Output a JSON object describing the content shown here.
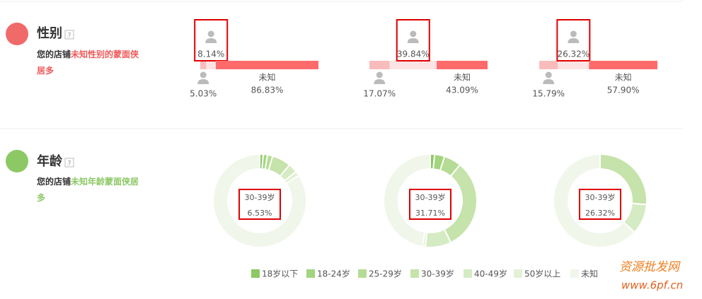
{
  "gender": {
    "title": "性别",
    "help": "?",
    "desc_prefix": "您的店铺",
    "desc_highlight": "未知性别的蒙面侠居多"
  },
  "age": {
    "title": "年龄",
    "help": "?",
    "desc_prefix": "您的店铺",
    "desc_highlight": "未知年龄蒙面侠居多"
  },
  "watermark": {
    "line1": "资源批发网",
    "line2": "www.6pf.cn"
  },
  "chart_data": [
    {
      "type": "stacked-bar",
      "categories": [
        null,
        null,
        "未知"
      ],
      "values": [
        5.03,
        8.14,
        86.83
      ],
      "value_labels": [
        "5.03%",
        "8.14%",
        "86.83%"
      ],
      "colors": [
        "#f9bcbc",
        "#fde3e3",
        "#ff6b6b"
      ],
      "xlim": [
        0,
        100
      ]
    },
    {
      "type": "stacked-bar",
      "categories": [
        null,
        null,
        "未知"
      ],
      "values": [
        17.07,
        39.84,
        43.09
      ],
      "value_labels": [
        "17.07%",
        "39.84%",
        "43.09%"
      ],
      "colors": [
        "#f9bcbc",
        "#fde3e3",
        "#ff6b6b"
      ],
      "xlim": [
        0,
        100
      ]
    },
    {
      "type": "stacked-bar",
      "categories": [
        null,
        null,
        "未知"
      ],
      "values": [
        15.79,
        26.32,
        57.9
      ],
      "value_labels": [
        "15.79%",
        "26.32%",
        "57.90%"
      ],
      "colors": [
        "#f9bcbc",
        "#fde3e3",
        "#ff6b6b"
      ],
      "xlim": [
        0,
        100
      ]
    },
    {
      "type": "pie",
      "categories": [
        "18岁以下",
        "18-24岁",
        "25-29岁",
        "30-39岁",
        "40-49岁",
        "50岁以上",
        "未知"
      ],
      "values": [
        1.2,
        1.5,
        1.8,
        6.53,
        3.2,
        1.6,
        84.17
      ],
      "value_labels": [
        null,
        null,
        null,
        "6.53%",
        null,
        null,
        null
      ],
      "colors": [
        "#8cc864",
        "#a3d47e",
        "#b5dc94",
        "#c5e3aa",
        "#d5ebc3",
        "#e3f1d7",
        "#f0f6ea"
      ],
      "legend": "bottom"
    },
    {
      "type": "pie",
      "categories": [
        "18岁以下",
        "18-24岁",
        "25-29岁",
        "30-39岁",
        "40-49岁",
        "50岁以上",
        "未知"
      ],
      "values": [
        1.5,
        3.5,
        6,
        31.71,
        9,
        1,
        47.29
      ],
      "value_labels": [
        null,
        null,
        null,
        "31.71%",
        null,
        null,
        null
      ],
      "colors": [
        "#8cc864",
        "#a3d47e",
        "#b5dc94",
        "#c5e3aa",
        "#d5ebc3",
        "#e3f1d7",
        "#f0f6ea"
      ]
    },
    {
      "type": "pie",
      "categories": [
        "18岁以下",
        "18-24岁",
        "25-29岁",
        "30-39岁",
        "40-49岁",
        "50岁以上",
        "未知"
      ],
      "values": [
        0,
        0,
        0,
        26.32,
        10.5,
        0,
        63.18
      ],
      "value_labels": [
        null,
        null,
        null,
        "26.32%",
        null,
        null,
        null
      ],
      "colors": [
        "#8cc864",
        "#a3d47e",
        "#b5dc94",
        "#c5e3aa",
        "#d5ebc3",
        "#e3f1d7",
        "#f0f6ea"
      ]
    }
  ]
}
